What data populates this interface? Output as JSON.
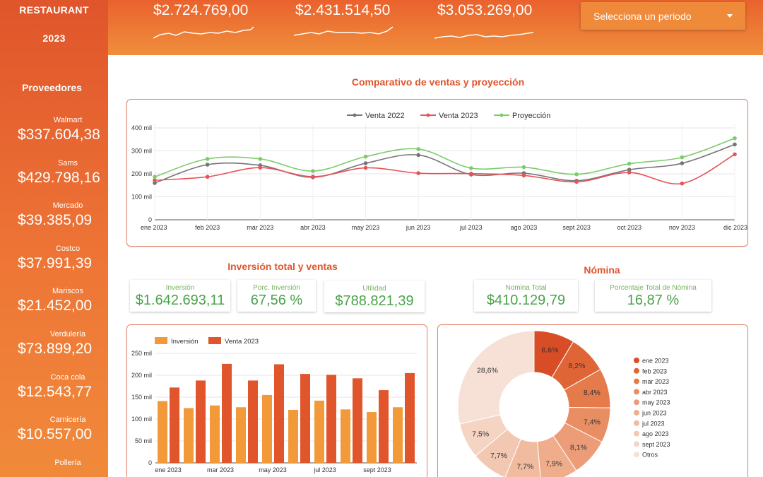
{
  "sidebar": {
    "title_line1": "RESTAURANT",
    "title_line2": "2023",
    "section_title": "Proveedores",
    "items": [
      {
        "name": "Walmart",
        "value": "$337.604,38"
      },
      {
        "name": "Sams",
        "value": "$429.798,16"
      },
      {
        "name": "Mercado",
        "value": "$39.385,09"
      },
      {
        "name": "Costco",
        "value": "$37.991,39"
      },
      {
        "name": "Mariscos",
        "value": "$21.452,00"
      },
      {
        "name": "Verdulería",
        "value": "$73.899,20"
      },
      {
        "name": "Coca cola",
        "value": "$12.543,77"
      },
      {
        "name": "Carnicería",
        "value": "$10.557,00"
      },
      {
        "name": "Pollería",
        "value": ""
      }
    ]
  },
  "header": {
    "kpis": [
      {
        "value": "$2.724.769,00"
      },
      {
        "value": "$2.431.514,50"
      },
      {
        "value": "$3.053.269,00"
      }
    ],
    "period_selector": {
      "placeholder": "Selecciona un periodo"
    }
  },
  "line_section": {
    "title": "Comparativo de ventas y proyección"
  },
  "invest_section": {
    "title": "Inversión total y ventas"
  },
  "nomina_section": {
    "title": "Nómina"
  },
  "scorecards": [
    {
      "label": "Inversión",
      "value": "$1.642.693,11"
    },
    {
      "label": "Porc. Inversión",
      "value": "67,56 %"
    },
    {
      "label": "Utilidad",
      "value": "$788.821,39"
    },
    {
      "label": "Nomina Total",
      "value": "$410.129,79"
    },
    {
      "label": "Porcentaje Total de Nómina",
      "value": "16,87 %"
    }
  ],
  "chart_data": [
    {
      "type": "line",
      "categories": [
        "ene 2023",
        "feb 2023",
        "mar 2023",
        "abr 2023",
        "may 2023",
        "jun 2023",
        "jul 2023",
        "ago 2023",
        "sept 2023",
        "oct 2023",
        "nov 2023",
        "dic 2023"
      ],
      "y_tick_labels": [
        "0",
        "100 mil",
        "200 mil",
        "300 mil",
        "400 mil"
      ],
      "ylim": [
        0,
        400000
      ],
      "series": [
        {
          "name": "Venta 2022",
          "color": "#757575",
          "values": [
            160000,
            240000,
            237000,
            185000,
            246000,
            282000,
            197000,
            203000,
            170000,
            218000,
            246000,
            328000
          ]
        },
        {
          "name": "Venta 2023",
          "color": "#e8525a",
          "values": [
            172000,
            187000,
            227000,
            188000,
            226000,
            203000,
            201000,
            193000,
            165000,
            206000,
            158000,
            285000
          ]
        },
        {
          "name": "Proyección",
          "color": "#7ccb6b",
          "values": [
            187000,
            265000,
            265000,
            212000,
            275000,
            308000,
            225000,
            229000,
            198000,
            244000,
            272000,
            355000
          ]
        }
      ],
      "legend": "top",
      "grid": true
    },
    {
      "type": "bar",
      "categories": [
        "ene 2023",
        "feb 2023",
        "mar 2023",
        "abr 2023",
        "may 2023",
        "jun 2023",
        "jul 2023",
        "ago 2023",
        "sept 2023",
        "oct 2023"
      ],
      "x_tick_labels_shown": [
        "ene 2023",
        "mar 2023",
        "may 2023",
        "jul 2023",
        "sept 2023"
      ],
      "y_tick_labels": [
        "0",
        "50 mil",
        "100 mil",
        "150 mil",
        "200 mil",
        "250 mil"
      ],
      "ylim": [
        0,
        250000
      ],
      "series": [
        {
          "name": "Inversión",
          "color": "#f29a3a",
          "values": [
            141000,
            125000,
            131000,
            127000,
            155000,
            121000,
            142000,
            122000,
            116000,
            127000
          ]
        },
        {
          "name": "Venta 2023",
          "color": "#e0552b",
          "values": [
            172000,
            188000,
            226000,
            188000,
            225000,
            203000,
            201000,
            193000,
            166000,
            205000
          ]
        }
      ],
      "legend": "top-left",
      "grid": true
    },
    {
      "type": "pie",
      "donut": true,
      "categories": [
        "ene 2023",
        "feb 2023",
        "mar 2023",
        "abr 2023",
        "may 2023",
        "jun 2023",
        "jul 2023",
        "ago 2023",
        "sept 2023",
        "Otros"
      ],
      "values": [
        8.6,
        8.2,
        8.4,
        7.4,
        8.1,
        7.9,
        7.7,
        7.7,
        7.5,
        28.6
      ],
      "value_labels": [
        "8,6%",
        "8,2%",
        "8,4%",
        "7,4%",
        "8,1%",
        "7,9%",
        "7,7%",
        "7,7%",
        "7,5%",
        "28,6%"
      ],
      "colors": [
        "#d94d26",
        "#e06536",
        "#e57a4b",
        "#e98d62",
        "#ec9d77",
        "#efad8c",
        "#f1bba0",
        "#f3c8b3",
        "#f5d4c4",
        "#f7e0d6"
      ],
      "legend": "right"
    }
  ]
}
